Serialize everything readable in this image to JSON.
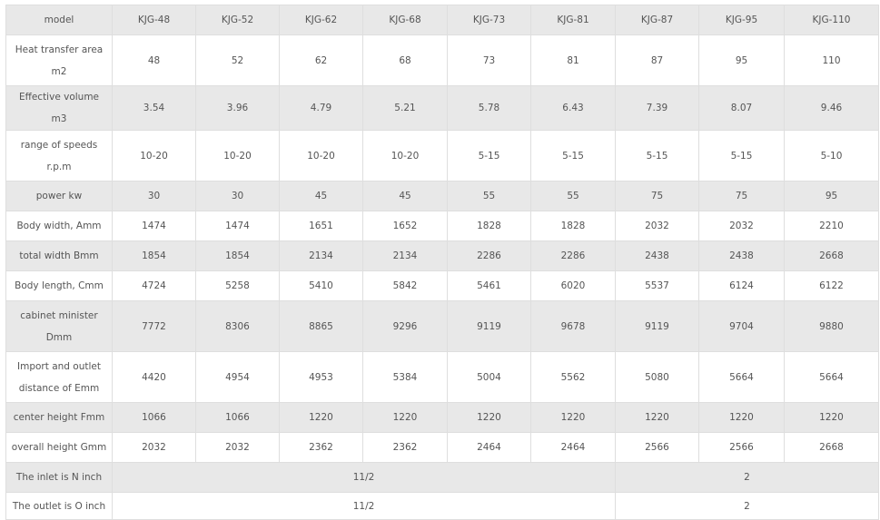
{
  "table": {
    "header": [
      "model",
      "KJG-48",
      "KJG-52",
      "KJG-62",
      "KJG-68",
      "KJG-73",
      "KJG-81",
      "KJG-87",
      "KJG-95",
      "KJG-110"
    ],
    "rows": [
      {
        "label": "Heat transfer area m2",
        "values": [
          "48",
          "52",
          "62",
          "68",
          "73",
          "81",
          "87",
          "95",
          "110"
        ]
      },
      {
        "label": "Effective volume  m3",
        "values": [
          "3.54",
          "3.96",
          "4.79",
          "5.21",
          "5.78",
          "6.43",
          "7.39",
          "8.07",
          "9.46"
        ]
      },
      {
        "label": "range of speeds r.p.m",
        "values": [
          "10-20",
          "10-20",
          "10-20",
          "10-20",
          "5-15",
          "5-15",
          "5-15",
          "5-15",
          "5-10"
        ]
      },
      {
        "label": "power kw",
        "values": [
          "30",
          "30",
          "45",
          "45",
          "55",
          "55",
          "75",
          "75",
          "95"
        ]
      },
      {
        "label": "Body width, Amm",
        "values": [
          "1474",
          "1474",
          "1651",
          "1652",
          "1828",
          "1828",
          "2032",
          "2032",
          "2210"
        ]
      },
      {
        "label": "total width Bmm",
        "values": [
          "1854",
          "1854",
          "2134",
          "2134",
          "2286",
          "2286",
          "2438",
          "2438",
          "2668"
        ]
      },
      {
        "label": "Body length, Cmm",
        "values": [
          "4724",
          "5258",
          "5410",
          "5842",
          "5461",
          "6020",
          "5537",
          "6124",
          "6122"
        ]
      },
      {
        "label": "cabinet minister Dmm",
        "values": [
          "7772",
          "8306",
          "8865",
          "9296",
          "9119",
          "9678",
          "9119",
          "9704",
          "9880"
        ]
      },
      {
        "label": "Import and outlet distance of Emm",
        "values": [
          "4420",
          "4954",
          "4953",
          "5384",
          "5004",
          "5562",
          "5080",
          "5664",
          "5664"
        ]
      },
      {
        "label": "center height Fmm",
        "values": [
          "1066",
          "1066",
          "1220",
          "1220",
          "1220",
          "1220",
          "1220",
          "1220",
          "1220"
        ]
      },
      {
        "label": "overall height Gmm",
        "values": [
          "2032",
          "2032",
          "2362",
          "2362",
          "2464",
          "2464",
          "2566",
          "2566",
          "2668"
        ]
      }
    ],
    "merged_rows": [
      {
        "label": "The inlet is N inch",
        "values": [
          "11/2",
          "2"
        ]
      },
      {
        "label": "The outlet is O inch",
        "values": [
          "11/2",
          "2"
        ]
      }
    ]
  },
  "colors": {
    "stripe": "#e8e8e8",
    "border": "#dedede",
    "text": "#555555"
  }
}
